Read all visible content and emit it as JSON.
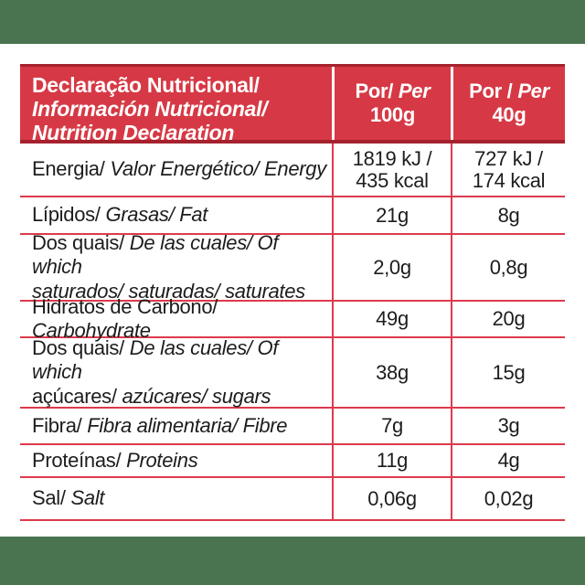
{
  "colors": {
    "band_green": "#4A7350",
    "header_bg": "#D63945",
    "header_dark_red": "#A6212E",
    "rule_red": "#DD3A4C",
    "text": "#1D1D1D",
    "header_text": "#ffffff"
  },
  "table": {
    "header": {
      "title_pt": "Declaração Nutricional/",
      "title_es": "Información Nutricional/",
      "title_en": "Nutrition Declaration",
      "col_100g": {
        "prefix": "Por/",
        "per": "Per",
        "amount": "100g"
      },
      "col_40g": {
        "prefix": "Por /",
        "per": "Per",
        "amount": "40g"
      }
    },
    "rows": [
      {
        "id": "energy",
        "label_lines": [
          [
            {
              "t": "Energia/",
              "i": false
            },
            {
              "t": "Valor Energético/ Energy",
              "i": true
            }
          ]
        ],
        "per100": [
          "1819 kJ /",
          "435 kcal"
        ],
        "per40": [
          "727 kJ /",
          "174 kcal"
        ]
      },
      {
        "id": "fat",
        "label_lines": [
          [
            {
              "t": "Lípidos/",
              "i": false
            },
            {
              "t": "Grasas/ Fat",
              "i": true
            }
          ]
        ],
        "per100": [
          "21g"
        ],
        "per40": [
          "8g"
        ]
      },
      {
        "id": "saturates",
        "label_lines": [
          [
            {
              "t": "Dos quais/",
              "i": false
            },
            {
              "t": "De las cuales/ Of which",
              "i": true
            }
          ],
          [
            {
              "t": "saturados/ saturadas/ saturates",
              "i": true
            }
          ]
        ],
        "per100": [
          "2,0g"
        ],
        "per40": [
          "0,8g"
        ]
      },
      {
        "id": "carbohydrate",
        "label_lines": [
          [
            {
              "t": "Hidratos de Carbono/",
              "i": false
            },
            {
              "t": "Carbohydrate",
              "i": true
            }
          ]
        ],
        "per100": [
          "49g"
        ],
        "per40": [
          "20g"
        ]
      },
      {
        "id": "sugars",
        "label_lines": [
          [
            {
              "t": "Dos quais/",
              "i": false
            },
            {
              "t": "De las cuales/ Of which",
              "i": true
            }
          ],
          [
            {
              "t": "açúcares/",
              "i": false
            },
            {
              "t": "azúcares/ sugars",
              "i": true
            }
          ]
        ],
        "per100": [
          "38g"
        ],
        "per40": [
          "15g"
        ]
      },
      {
        "id": "fibre",
        "label_lines": [
          [
            {
              "t": "Fibra/",
              "i": false
            },
            {
              "t": "Fibra alimentaria/ Fibre",
              "i": true
            }
          ]
        ],
        "per100": [
          "7g"
        ],
        "per40": [
          "3g"
        ]
      },
      {
        "id": "proteins",
        "label_lines": [
          [
            {
              "t": "Proteínas/",
              "i": false
            },
            {
              "t": "Proteins",
              "i": true
            }
          ]
        ],
        "per100": [
          "11g"
        ],
        "per40": [
          "4g"
        ]
      },
      {
        "id": "salt",
        "label_lines": [
          [
            {
              "t": "Sal/",
              "i": false
            },
            {
              "t": "Salt",
              "i": true
            }
          ]
        ],
        "per100": [
          "0,06g"
        ],
        "per40": [
          "0,02g"
        ]
      }
    ]
  }
}
